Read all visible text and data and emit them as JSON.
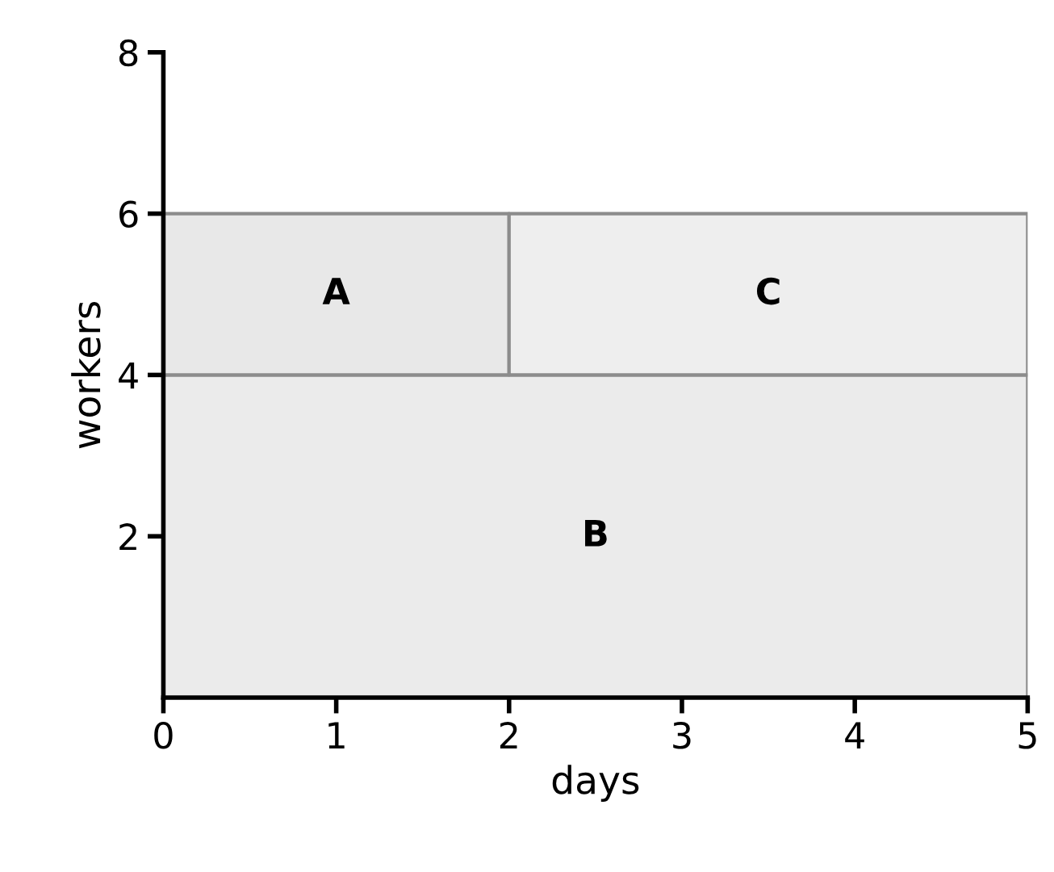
{
  "chart_data": {
    "type": "area",
    "stacked": true,
    "xlabel": "days",
    "ylabel": "workers",
    "xlim": [
      0,
      5
    ],
    "ylim": [
      0,
      8
    ],
    "xticks": [
      0,
      1,
      2,
      3,
      4,
      5
    ],
    "yticks": [
      2,
      4,
      6,
      8
    ],
    "grid": false,
    "x": [
      0,
      2,
      2,
      5
    ],
    "series": [
      {
        "name": "B",
        "color": "#ebebeb",
        "values": [
          4,
          4,
          4,
          4
        ]
      },
      {
        "name": "A",
        "color": "#e8e8e8",
        "values": [
          2,
          2,
          null,
          null
        ]
      },
      {
        "name": "C",
        "color": "#eeeeee",
        "values": [
          null,
          null,
          2,
          2
        ]
      }
    ]
  }
}
